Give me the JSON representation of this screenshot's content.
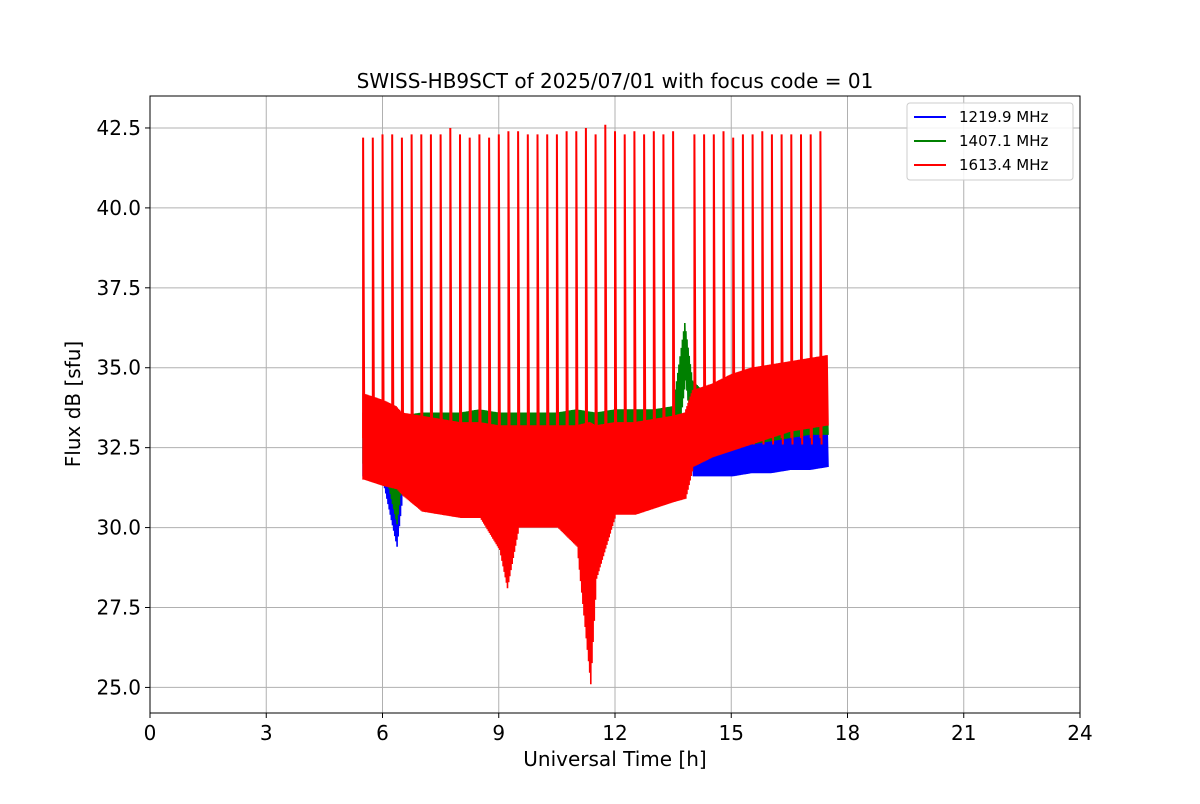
{
  "chart_data": {
    "type": "line",
    "title": "SWISS-HB9SCT of 2025/07/01 with focus code = 01",
    "xlabel": "Universal Time [h]",
    "ylabel": "Flux dB [sfu]",
    "xlim": [
      0,
      24
    ],
    "ylim": [
      24.2,
      43.5
    ],
    "xticks": [
      0,
      3,
      6,
      9,
      12,
      15,
      18,
      21,
      24
    ],
    "xtick_labels": [
      "0",
      "3",
      "6",
      "9",
      "12",
      "15",
      "18",
      "21",
      "24"
    ],
    "yticks": [
      25.0,
      27.5,
      30.0,
      32.5,
      35.0,
      37.5,
      40.0,
      42.5
    ],
    "ytick_labels": [
      "25.0",
      "27.5",
      "30.0",
      "32.5",
      "35.0",
      "37.5",
      "40.0",
      "42.5"
    ],
    "grid": true,
    "legend_position": "top-right",
    "series": [
      {
        "name": "1219.9 MHz",
        "color": "#0000ff",
        "x": [
          5.5,
          6.0,
          6.35,
          6.5,
          7.0,
          7.5,
          8.0,
          8.5,
          9.0,
          9.5,
          10.0,
          10.5,
          11.0,
          11.5,
          12.0,
          12.5,
          13.0,
          13.5,
          13.8,
          14.0,
          14.5,
          15.0,
          15.5,
          16.0,
          16.5,
          17.0,
          17.5
        ],
        "upper": [
          32.8,
          32.6,
          32.4,
          32.6,
          32.4,
          32.3,
          32.2,
          32.2,
          32.0,
          32.0,
          32.1,
          32.0,
          32.0,
          32.3,
          32.4,
          32.5,
          32.6,
          32.9,
          33.5,
          32.8,
          32.8,
          32.9,
          33.0,
          33.1,
          33.2,
          33.3,
          33.3
        ],
        "lower": [
          31.6,
          31.4,
          29.4,
          31.0,
          31.2,
          31.0,
          31.0,
          31.0,
          30.8,
          30.8,
          30.9,
          30.9,
          30.8,
          31.0,
          31.0,
          31.0,
          31.1,
          31.2,
          33.2,
          31.6,
          31.6,
          31.6,
          31.7,
          31.7,
          31.8,
          31.8,
          31.9
        ]
      },
      {
        "name": "1407.1 MHz",
        "color": "#008000",
        "x": [
          5.5,
          6.0,
          6.35,
          6.5,
          7.0,
          7.5,
          8.0,
          8.5,
          9.0,
          9.5,
          10.0,
          10.5,
          11.0,
          11.5,
          12.0,
          12.5,
          13.0,
          13.5,
          13.8,
          14.0,
          14.5,
          15.0,
          15.5,
          16.0,
          16.5,
          17.0,
          17.5
        ],
        "upper": [
          33.6,
          33.6,
          33.5,
          33.5,
          33.6,
          33.6,
          33.6,
          33.7,
          33.6,
          33.6,
          33.6,
          33.6,
          33.7,
          33.6,
          33.7,
          33.7,
          33.7,
          33.8,
          36.4,
          34.6,
          34.0,
          33.6,
          33.8,
          33.9,
          34.0,
          34.1,
          34.2
        ],
        "lower": [
          32.0,
          32.0,
          30.1,
          31.6,
          31.7,
          31.6,
          31.6,
          31.6,
          31.4,
          31.4,
          31.5,
          31.5,
          31.4,
          31.6,
          31.6,
          31.6,
          31.7,
          31.8,
          34.6,
          32.4,
          32.4,
          32.5,
          32.6,
          32.7,
          32.8,
          32.9,
          32.9
        ]
      },
      {
        "name": "1613.4 MHz",
        "color": "#ff0000",
        "x": [
          5.5,
          6.0,
          6.35,
          6.5,
          7.0,
          7.5,
          8.0,
          8.5,
          9.0,
          9.2,
          9.5,
          10.0,
          10.5,
          11.0,
          11.35,
          11.5,
          12.0,
          12.5,
          13.0,
          13.5,
          13.8,
          14.0,
          14.5,
          15.0,
          15.5,
          16.0,
          16.5,
          17.0,
          17.5
        ],
        "upper": [
          34.2,
          34.0,
          33.8,
          33.6,
          33.5,
          33.4,
          33.3,
          33.3,
          33.2,
          33.2,
          33.2,
          33.2,
          33.2,
          33.2,
          33.3,
          33.2,
          33.3,
          33.3,
          33.4,
          33.5,
          33.6,
          34.3,
          34.5,
          34.8,
          35.0,
          35.1,
          35.2,
          35.3,
          35.4
        ],
        "lower": [
          31.5,
          31.3,
          31.2,
          31.0,
          30.5,
          30.4,
          30.3,
          30.3,
          29.3,
          28.1,
          30.0,
          30.0,
          30.0,
          29.4,
          25.1,
          28.4,
          30.4,
          30.4,
          30.6,
          30.8,
          30.9,
          31.9,
          32.2,
          32.4,
          32.6,
          32.8,
          33.0,
          33.1,
          33.2
        ],
        "spikes_x": [
          5.5,
          5.75,
          6.0,
          6.25,
          6.5,
          6.75,
          7.0,
          7.25,
          7.5,
          7.75,
          8.0,
          8.25,
          8.5,
          8.75,
          9.0,
          9.25,
          9.5,
          9.75,
          10.0,
          10.25,
          10.5,
          10.75,
          11.0,
          11.25,
          11.5,
          11.75,
          12.0,
          12.25,
          12.5,
          12.75,
          13.0,
          13.25,
          13.5,
          14.05,
          14.3,
          14.55,
          14.8,
          15.05,
          15.3,
          15.55,
          15.8,
          16.05,
          16.3,
          16.55,
          16.8,
          17.05,
          17.3
        ],
        "spikes_y": [
          42.2,
          42.2,
          42.3,
          42.3,
          42.2,
          42.3,
          42.3,
          42.3,
          42.3,
          42.5,
          42.3,
          42.2,
          42.3,
          42.2,
          42.3,
          42.4,
          42.4,
          42.3,
          42.3,
          42.3,
          42.3,
          42.4,
          42.4,
          42.5,
          42.3,
          42.6,
          42.4,
          42.3,
          42.4,
          42.3,
          42.4,
          42.3,
          42.4,
          42.3,
          42.3,
          42.3,
          42.4,
          42.2,
          42.3,
          42.3,
          42.4,
          42.3,
          42.3,
          42.3,
          42.3,
          42.3,
          42.4
        ]
      }
    ]
  }
}
